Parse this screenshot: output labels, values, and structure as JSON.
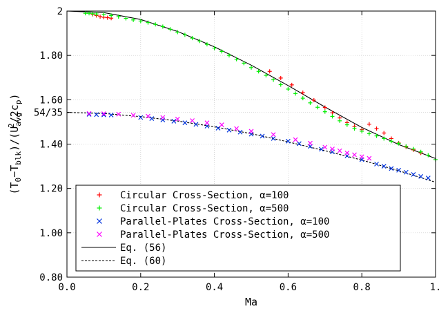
{
  "chart_data": {
    "type": "scatter",
    "title": "",
    "xlabel": "Ma",
    "ylabel_main": "(T",
    "ylabel_parts": [
      "(T",
      "0",
      "−T",
      "blk",
      ")/(U",
      "avg",
      "2",
      "/2c",
      "p",
      ")"
    ],
    "xlim": [
      0.0,
      1.0
    ],
    "ylim": [
      0.8,
      2.0
    ],
    "x_ticks": [
      {
        "value": 0.0,
        "label": "0.0"
      },
      {
        "value": 0.2,
        "label": "0.2"
      },
      {
        "value": 0.4,
        "label": "0.4"
      },
      {
        "value": 0.6,
        "label": "0.6"
      },
      {
        "value": 0.8,
        "label": "0.8"
      },
      {
        "value": 1.0,
        "label": "1."
      }
    ],
    "y_ticks": [
      {
        "value": 0.8,
        "label": "0.80"
      },
      {
        "value": 1.0,
        "label": "1.00"
      },
      {
        "value": 1.2,
        "label": "1.20"
      },
      {
        "value": 1.4,
        "label": "1.40"
      },
      {
        "value": 1.542857,
        "label": "54/35"
      },
      {
        "value": 1.6,
        "label": "1.60"
      },
      {
        "value": 1.8,
        "label": "1.80"
      },
      {
        "value": 2.0,
        "label": "2"
      }
    ],
    "grid": true,
    "legend_position": "bottom-left",
    "series": [
      {
        "name": "Circular Cross-Section, α=100",
        "marker": "plus",
        "color": "#ff0000",
        "x": [
          0.07,
          0.08,
          0.09,
          0.1,
          0.11,
          0.12,
          0.55,
          0.58,
          0.61,
          0.64,
          0.67,
          0.7,
          0.72,
          0.74,
          0.76,
          0.78,
          0.8,
          0.82,
          0.84,
          0.86,
          0.88,
          0.9,
          0.92,
          0.94,
          0.96
        ],
        "y": [
          1.985,
          1.98,
          1.975,
          1.972,
          1.97,
          1.968,
          1.728,
          1.698,
          1.667,
          1.632,
          1.598,
          1.565,
          1.541,
          1.518,
          1.497,
          1.48,
          1.465,
          1.49,
          1.47,
          1.45,
          1.425,
          1.405,
          1.387,
          1.374,
          1.36
        ]
      },
      {
        "name": "Circular Cross-Section, α=500",
        "marker": "plus",
        "color": "#00ee00",
        "x": [
          0.05,
          0.06,
          0.07,
          0.08,
          0.1,
          0.12,
          0.14,
          0.16,
          0.18,
          0.2,
          0.22,
          0.24,
          0.26,
          0.28,
          0.3,
          0.32,
          0.34,
          0.36,
          0.38,
          0.4,
          0.42,
          0.44,
          0.46,
          0.48,
          0.5,
          0.52,
          0.54,
          0.56,
          0.58,
          0.6,
          0.62,
          0.64,
          0.66,
          0.68,
          0.7,
          0.72,
          0.74,
          0.76,
          0.78,
          0.8,
          0.82,
          0.84,
          0.86,
          0.88,
          0.9,
          0.92,
          0.94,
          0.96,
          0.98,
          1.0
        ],
        "y": [
          1.99,
          1.99,
          1.988,
          1.987,
          1.985,
          1.98,
          1.975,
          1.967,
          1.96,
          1.955,
          1.948,
          1.94,
          1.93,
          1.918,
          1.905,
          1.893,
          1.878,
          1.865,
          1.85,
          1.833,
          1.818,
          1.8,
          1.783,
          1.765,
          1.745,
          1.728,
          1.71,
          1.69,
          1.668,
          1.648,
          1.628,
          1.607,
          1.586,
          1.566,
          1.546,
          1.525,
          1.505,
          1.487,
          1.47,
          1.458,
          1.447,
          1.437,
          1.425,
          1.413,
          1.403,
          1.39,
          1.378,
          1.365,
          1.35,
          1.33
        ]
      },
      {
        "name": "Parallel-Plates Cross-Section, α=100",
        "marker": "cross",
        "color": "#0033dd",
        "x": [
          0.06,
          0.08,
          0.1,
          0.12,
          0.2,
          0.23,
          0.26,
          0.29,
          0.32,
          0.35,
          0.38,
          0.41,
          0.44,
          0.47,
          0.5,
          0.53,
          0.56,
          0.6,
          0.63,
          0.66,
          0.69,
          0.72,
          0.76,
          0.8,
          0.84,
          0.86,
          0.88,
          0.9,
          0.92,
          0.94,
          0.96,
          0.98
        ],
        "y": [
          1.534,
          1.533,
          1.532,
          1.531,
          1.52,
          1.515,
          1.509,
          1.503,
          1.496,
          1.489,
          1.481,
          1.472,
          1.463,
          1.454,
          1.445,
          1.436,
          1.425,
          1.413,
          1.402,
          1.39,
          1.377,
          1.365,
          1.347,
          1.33,
          1.31,
          1.3,
          1.29,
          1.282,
          1.273,
          1.263,
          1.254,
          1.247
        ]
      },
      {
        "name": "Parallel-Plates Cross-Section, α=500",
        "marker": "cross",
        "color": "#ff00ff",
        "x": [
          0.06,
          0.1,
          0.14,
          0.18,
          0.22,
          0.26,
          0.3,
          0.34,
          0.38,
          0.42,
          0.46,
          0.5,
          0.56,
          0.62,
          0.66,
          0.7,
          0.72,
          0.74,
          0.76,
          0.78,
          0.8,
          0.82
        ],
        "y": [
          1.538,
          1.537,
          1.535,
          1.53,
          1.526,
          1.52,
          1.513,
          1.506,
          1.496,
          1.487,
          1.47,
          1.458,
          1.443,
          1.42,
          1.404,
          1.386,
          1.378,
          1.37,
          1.36,
          1.352,
          1.343,
          1.336
        ]
      }
    ],
    "lines": [
      {
        "name": "Eq. (56)",
        "style": "solid",
        "color": "#000000",
        "x": [
          0.0,
          0.1,
          0.2,
          0.3,
          0.4,
          0.5,
          0.6,
          0.7,
          0.8,
          0.9,
          1.0
        ],
        "y": [
          2.0,
          1.993,
          1.962,
          1.908,
          1.839,
          1.756,
          1.664,
          1.567,
          1.475,
          1.398,
          1.335
        ]
      },
      {
        "name": "Eq. (60)",
        "style": "dashed",
        "color": "#000000",
        "x": [
          0.0,
          0.1,
          0.2,
          0.3,
          0.4,
          0.5,
          0.6,
          0.7,
          0.8,
          0.9,
          1.0
        ],
        "y": [
          1.543,
          1.538,
          1.524,
          1.504,
          1.478,
          1.447,
          1.41,
          1.37,
          1.328,
          1.28,
          1.228
        ]
      }
    ]
  }
}
